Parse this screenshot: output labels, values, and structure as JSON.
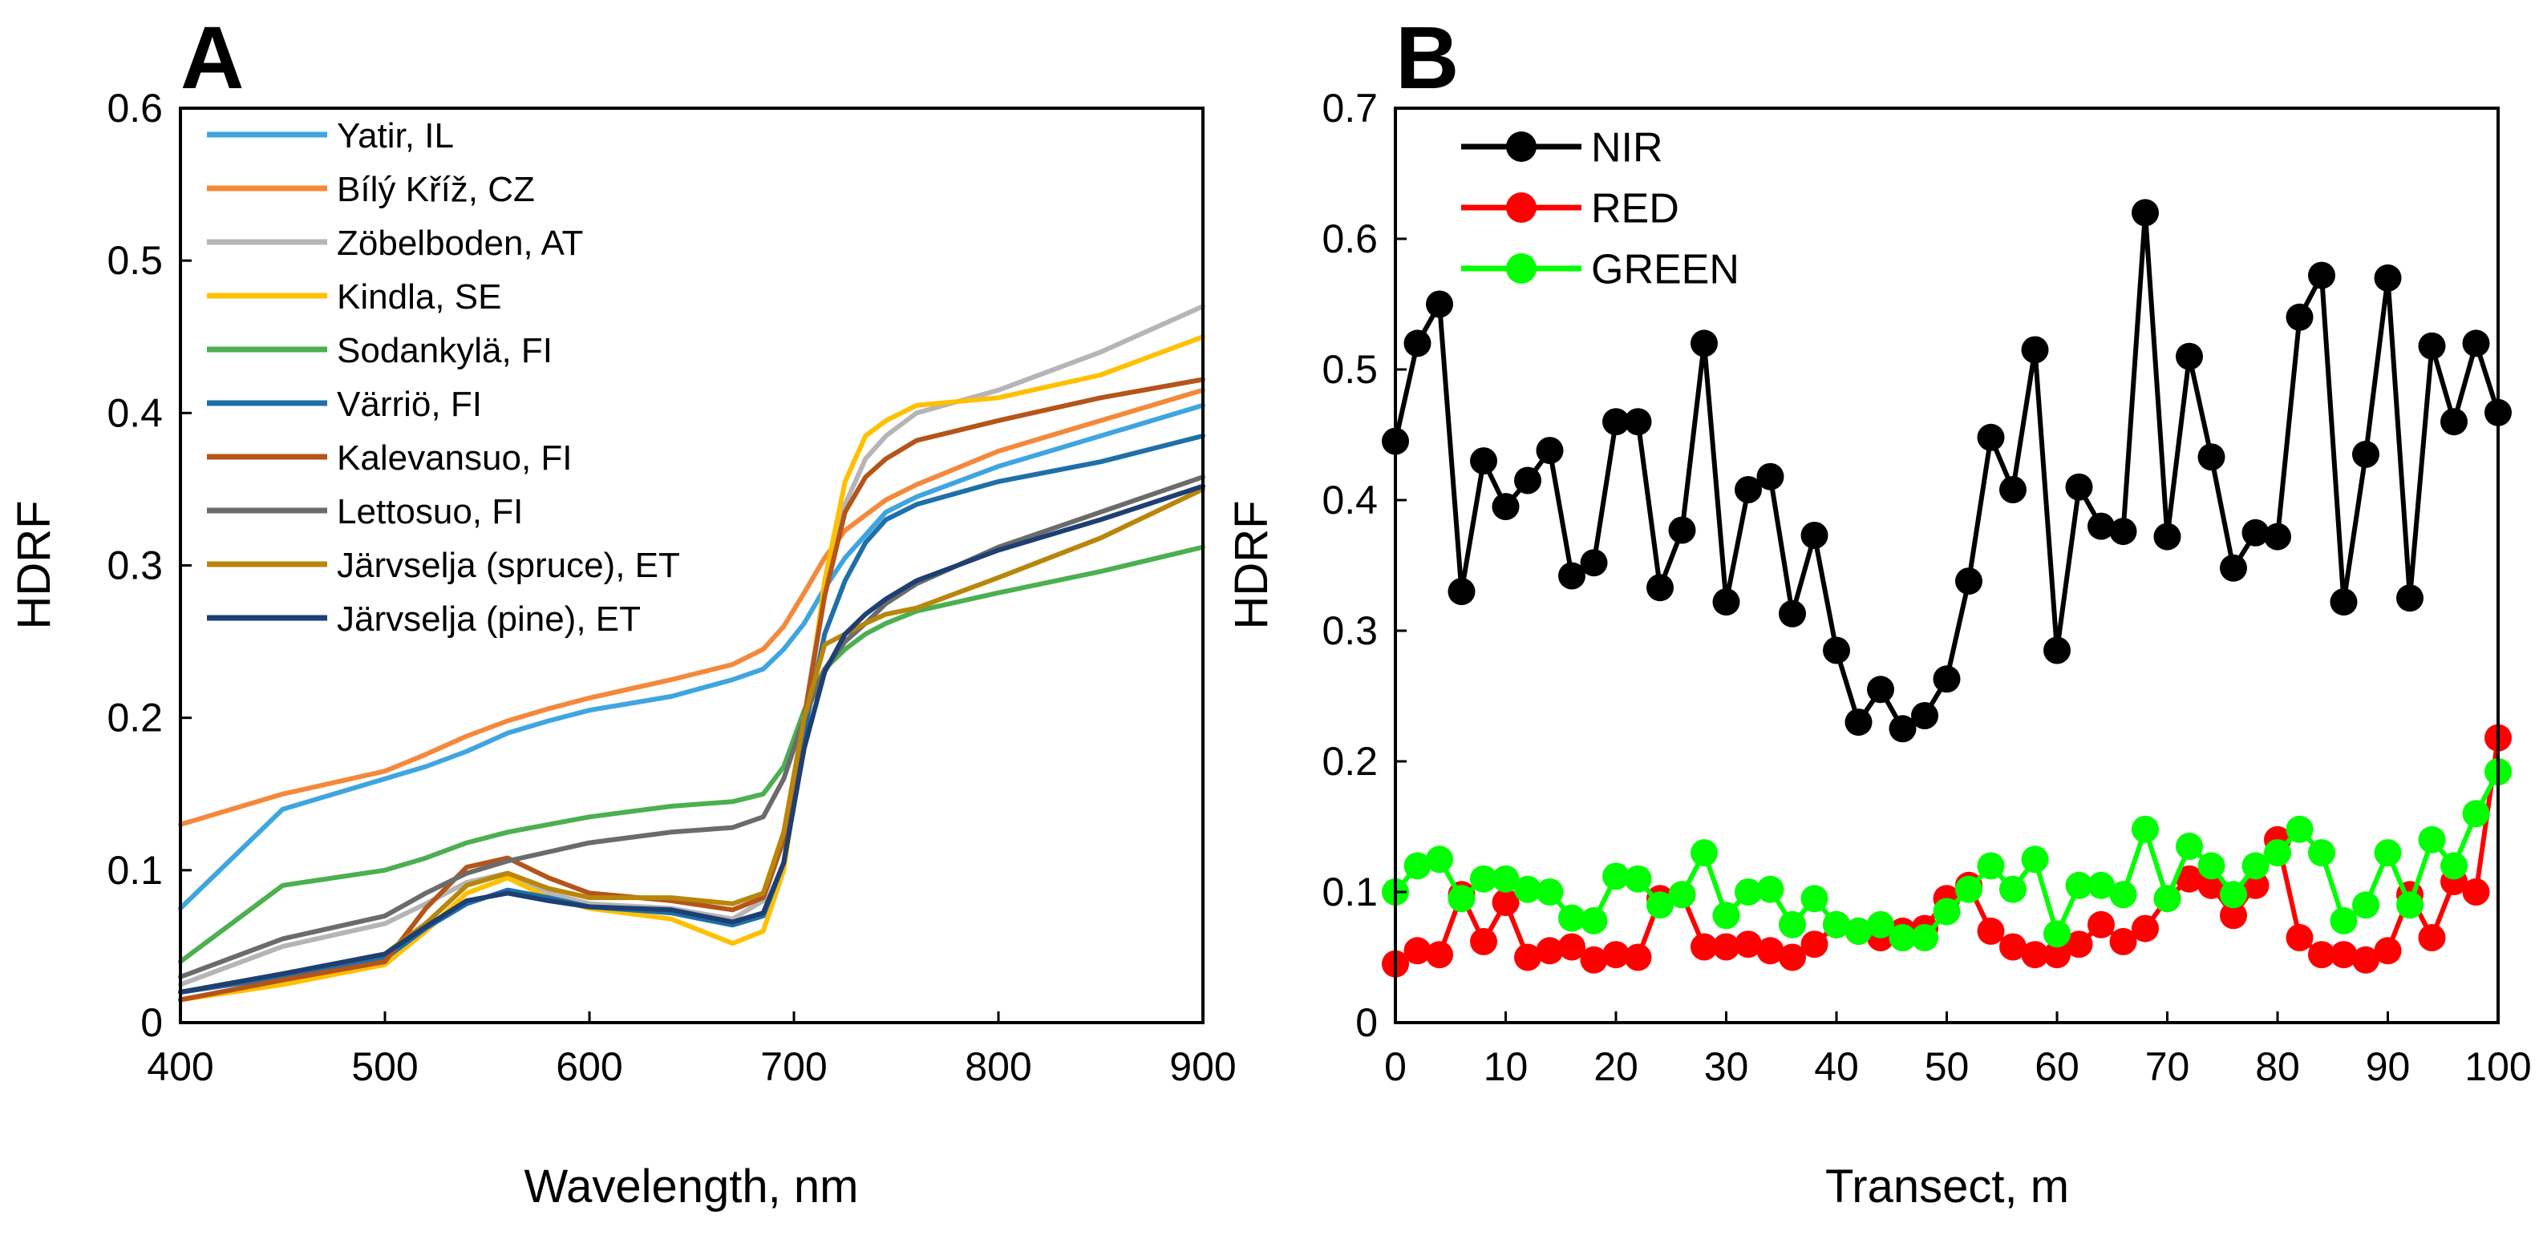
{
  "chart_data": [
    {
      "panel": "A",
      "type": "line",
      "title": "",
      "xlabel": "Wavelength, nm",
      "ylabel": "HDRF",
      "xlim": [
        400,
        900
      ],
      "ylim": [
        0,
        0.6
      ],
      "xticks": [
        "400",
        "500",
        "600",
        "700",
        "800",
        "900"
      ],
      "yticks": [
        "0",
        "0.1",
        "0.2",
        "0.3",
        "0.4",
        "0.5",
        "0.6"
      ],
      "legend_position": "top-left",
      "x": [
        400,
        450,
        500,
        520,
        540,
        560,
        580,
        600,
        640,
        670,
        685,
        695,
        705,
        715,
        725,
        735,
        745,
        760,
        800,
        850,
        900
      ],
      "series": [
        {
          "name": "Yatir, IL",
          "color": "#3fa5e0",
          "values": [
            0.075,
            0.14,
            0.16,
            0.168,
            0.178,
            0.19,
            0.198,
            0.205,
            0.214,
            0.225,
            0.232,
            0.245,
            0.262,
            0.285,
            0.305,
            0.32,
            0.335,
            0.345,
            0.365,
            0.385,
            0.405
          ]
        },
        {
          "name": "Bílý Kříž, CZ",
          "color": "#f5883a",
          "values": [
            0.13,
            0.15,
            0.165,
            0.176,
            0.188,
            0.198,
            0.206,
            0.213,
            0.225,
            0.235,
            0.245,
            0.26,
            0.282,
            0.305,
            0.323,
            0.333,
            0.343,
            0.353,
            0.375,
            0.395,
            0.415
          ]
        },
        {
          "name": "Zöbelboden, AT",
          "color": "#b5b5b5",
          "values": [
            0.025,
            0.05,
            0.065,
            0.078,
            0.092,
            0.098,
            0.085,
            0.078,
            0.075,
            0.068,
            0.08,
            0.12,
            0.2,
            0.285,
            0.34,
            0.37,
            0.385,
            0.4,
            0.415,
            0.44,
            0.47
          ]
        },
        {
          "name": "Kindla, SE",
          "color": "#ffc000",
          "values": [
            0.015,
            0.025,
            0.038,
            0.06,
            0.085,
            0.095,
            0.082,
            0.075,
            0.068,
            0.052,
            0.06,
            0.1,
            0.19,
            0.29,
            0.355,
            0.385,
            0.395,
            0.405,
            0.41,
            0.425,
            0.45
          ]
        },
        {
          "name": "Sodankylä, FI",
          "color": "#4caf50",
          "values": [
            0.04,
            0.09,
            0.1,
            0.108,
            0.118,
            0.125,
            0.13,
            0.135,
            0.142,
            0.145,
            0.15,
            0.168,
            0.205,
            0.232,
            0.245,
            0.255,
            0.262,
            0.27,
            0.282,
            0.296,
            0.312
          ]
        },
        {
          "name": "Värriö, FI",
          "color": "#1f6fa8",
          "values": [
            0.02,
            0.03,
            0.042,
            0.062,
            0.078,
            0.087,
            0.082,
            0.076,
            0.072,
            0.064,
            0.07,
            0.105,
            0.19,
            0.255,
            0.29,
            0.315,
            0.33,
            0.34,
            0.355,
            0.368,
            0.385
          ]
        },
        {
          "name": "Kalevansuo, FI",
          "color": "#b5541a",
          "values": [
            0.015,
            0.028,
            0.04,
            0.075,
            0.102,
            0.108,
            0.095,
            0.085,
            0.08,
            0.074,
            0.082,
            0.12,
            0.2,
            0.28,
            0.335,
            0.358,
            0.37,
            0.382,
            0.395,
            0.41,
            0.422
          ]
        },
        {
          "name": "Lettosuo, FI",
          "color": "#6b6b6b",
          "values": [
            0.03,
            0.055,
            0.07,
            0.085,
            0.098,
            0.106,
            0.112,
            0.118,
            0.125,
            0.128,
            0.135,
            0.16,
            0.2,
            0.232,
            0.25,
            0.262,
            0.275,
            0.288,
            0.312,
            0.335,
            0.358
          ]
        },
        {
          "name": "Järvselja (spruce), ET",
          "color": "#b8860b",
          "values": [
            0.02,
            0.032,
            0.045,
            0.065,
            0.09,
            0.098,
            0.088,
            0.082,
            0.082,
            0.078,
            0.085,
            0.125,
            0.2,
            0.248,
            0.255,
            0.262,
            0.268,
            0.272,
            0.292,
            0.318,
            0.35
          ]
        },
        {
          "name": "Järvselja (pine), ET",
          "color": "#1d3f73",
          "values": [
            0.02,
            0.032,
            0.045,
            0.063,
            0.08,
            0.085,
            0.08,
            0.076,
            0.074,
            0.066,
            0.072,
            0.105,
            0.18,
            0.23,
            0.255,
            0.268,
            0.278,
            0.29,
            0.31,
            0.33,
            0.352
          ]
        }
      ]
    },
    {
      "panel": "B",
      "type": "line",
      "title": "",
      "xlabel": "Transect, m",
      "ylabel": "HDRF",
      "xlim": [
        0,
        100
      ],
      "ylim": [
        0,
        0.7
      ],
      "xticks": [
        "0",
        "10",
        "20",
        "30",
        "40",
        "50",
        "60",
        "70",
        "80",
        "90",
        "100"
      ],
      "yticks": [
        "0",
        "0.1",
        "0.2",
        "0.3",
        "0.4",
        "0.5",
        "0.6",
        "0.7"
      ],
      "legend_position": "top-left",
      "x": [
        0,
        2,
        4,
        6,
        8,
        10,
        12,
        14,
        16,
        18,
        20,
        22,
        24,
        26,
        28,
        30,
        32,
        34,
        36,
        38,
        40,
        42,
        44,
        46,
        48,
        50,
        52,
        54,
        56,
        58,
        60,
        62,
        64,
        66,
        68,
        70,
        72,
        74,
        76,
        78,
        80,
        82,
        84,
        86,
        88,
        90,
        92,
        94,
        96,
        98,
        100
      ],
      "series": [
        {
          "name": "NIR",
          "color": "#000000",
          "values": [
            0.445,
            0.52,
            0.55,
            0.33,
            0.43,
            0.395,
            0.415,
            0.438,
            0.342,
            0.352,
            0.46,
            0.46,
            0.333,
            0.377,
            0.52,
            0.322,
            0.408,
            0.418,
            0.313,
            0.373,
            0.285,
            0.23,
            0.255,
            0.225,
            0.235,
            0.263,
            0.338,
            0.448,
            0.408,
            0.515,
            0.285,
            0.41,
            0.38,
            0.376,
            0.62,
            0.372,
            0.51,
            0.433,
            0.348,
            0.375,
            0.372,
            0.54,
            0.572,
            0.322,
            0.435,
            0.57,
            0.325,
            0.518,
            0.46,
            0.52,
            0.467
          ]
        },
        {
          "name": "RED",
          "color": "#ff0000",
          "values": [
            0.045,
            0.055,
            0.052,
            0.098,
            0.062,
            0.092,
            0.05,
            0.055,
            0.058,
            0.048,
            0.052,
            0.05,
            0.095,
            0.098,
            0.058,
            0.058,
            0.06,
            0.055,
            0.05,
            0.06,
            0.075,
            0.07,
            0.065,
            0.07,
            0.072,
            0.095,
            0.105,
            0.07,
            0.058,
            0.052,
            0.052,
            0.06,
            0.075,
            0.062,
            0.072,
            0.095,
            0.11,
            0.105,
            0.082,
            0.105,
            0.14,
            0.065,
            0.052,
            0.052,
            0.048,
            0.055,
            0.098,
            0.065,
            0.108,
            0.1,
            0.218
          ]
        },
        {
          "name": "GREEN",
          "color": "#00ff00",
          "values": [
            0.1,
            0.12,
            0.125,
            0.095,
            0.11,
            0.11,
            0.102,
            0.1,
            0.08,
            0.078,
            0.112,
            0.11,
            0.09,
            0.098,
            0.13,
            0.082,
            0.1,
            0.102,
            0.075,
            0.095,
            0.075,
            0.07,
            0.075,
            0.065,
            0.065,
            0.085,
            0.102,
            0.12,
            0.102,
            0.125,
            0.068,
            0.105,
            0.105,
            0.098,
            0.148,
            0.095,
            0.135,
            0.12,
            0.098,
            0.12,
            0.13,
            0.148,
            0.13,
            0.078,
            0.09,
            0.13,
            0.09,
            0.14,
            0.12,
            0.16,
            0.192
          ]
        }
      ]
    }
  ]
}
